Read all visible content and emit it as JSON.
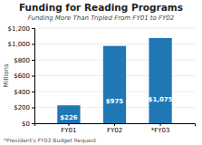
{
  "chart_data": {
    "type": "bar",
    "title": "Funding for Reading Programs",
    "subtitle": "Funding More Than Tripled From FY01 to FY02",
    "footnote": "*President's FY03 Budget Request",
    "ylabel": "Millions",
    "categories": [
      "FY01",
      "FY02",
      "*FY03"
    ],
    "values": [
      226,
      975,
      1075
    ],
    "value_labels": [
      "$226",
      "$975",
      "$1,075"
    ],
    "data_labels": true,
    "ylim": [
      0,
      1200
    ],
    "yticks": [
      {
        "value": 0,
        "label": "$0"
      },
      {
        "value": 200,
        "label": "$200"
      },
      {
        "value": 400,
        "label": "$400"
      },
      {
        "value": 600,
        "label": "$600"
      },
      {
        "value": 800,
        "label": "$800"
      },
      {
        "value": 1000,
        "label": "$1,000"
      },
      {
        "value": 1200,
        "label": "$1,200"
      }
    ],
    "grid": true
  }
}
